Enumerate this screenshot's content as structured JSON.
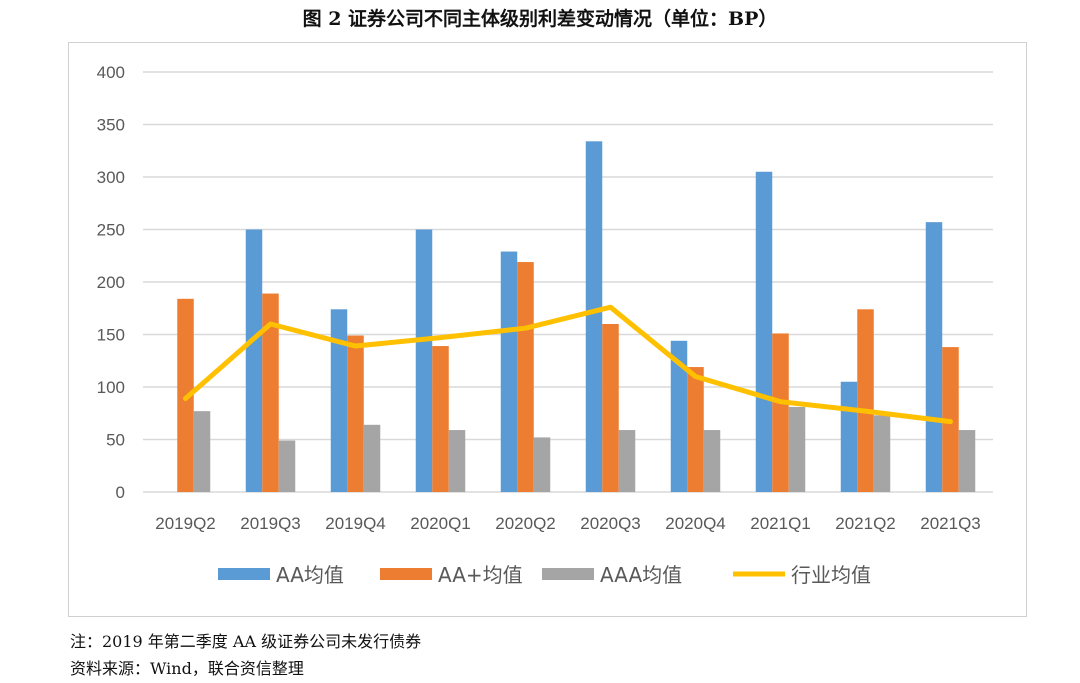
{
  "title": "图 2   证券公司不同主体级别利差变动情况（单位：BP）",
  "notes": [
    "注：2019 年第二季度 AA 级证券公司未发行债券",
    "资料来源：Wind，联合资信整理"
  ],
  "chart_data": {
    "type": "bar",
    "categories": [
      "2019Q2",
      "2019Q3",
      "2019Q4",
      "2020Q1",
      "2020Q2",
      "2020Q3",
      "2020Q4",
      "2021Q1",
      "2021Q2",
      "2021Q3"
    ],
    "ylim": [
      0,
      400
    ],
    "yticks": [
      0,
      50,
      100,
      150,
      200,
      250,
      300,
      350,
      400
    ],
    "grid": true,
    "legend_position": "bottom",
    "series": [
      {
        "name": "AA均值",
        "type": "bar",
        "color": "#5B9BD5",
        "values": [
          null,
          250,
          174,
          250,
          229,
          334,
          144,
          305,
          105,
          257
        ]
      },
      {
        "name": "AA+均值",
        "type": "bar",
        "color": "#ED7D31",
        "values": [
          184,
          189,
          149,
          139,
          219,
          160,
          119,
          151,
          174,
          138
        ]
      },
      {
        "name": "AAA均值",
        "type": "bar",
        "color": "#A5A5A5",
        "values": [
          77,
          49,
          64,
          59,
          52,
          59,
          59,
          81,
          73,
          59
        ]
      },
      {
        "name": "行业均值",
        "type": "line",
        "color": "#FFC000",
        "values": [
          89,
          160,
          139,
          147,
          156,
          176,
          110,
          86,
          77,
          67
        ]
      }
    ]
  }
}
